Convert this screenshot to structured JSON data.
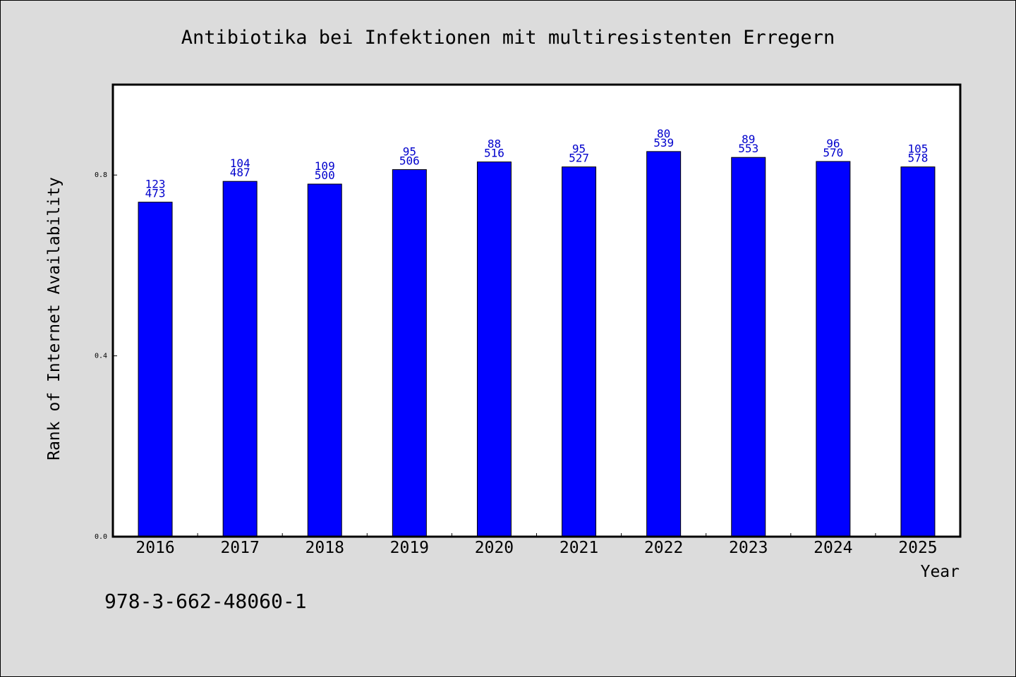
{
  "colors": {
    "bar": "#0000ff",
    "bar_outline": "#000000",
    "data_label": "#0000cc",
    "page_background": "#dcdcdc",
    "plot_background": "#ffffff"
  },
  "footer": {
    "isbn": "978-3-662-48060-1"
  },
  "chart_data": {
    "type": "bar",
    "title": "Antibiotika bei Infektionen mit multiresistenten Erregern",
    "xlabel": "Year",
    "ylabel": "Rank of Internet Availability",
    "categories": [
      "2016",
      "2017",
      "2018",
      "2019",
      "2020",
      "2021",
      "2022",
      "2023",
      "2024",
      "2025"
    ],
    "values": [
      0.74,
      0.786,
      0.78,
      0.812,
      0.829,
      0.818,
      0.852,
      0.839,
      0.83,
      0.818
    ],
    "label_top": [
      "123",
      "104",
      "109",
      "95",
      "88",
      "95",
      "80",
      "89",
      "96",
      "105"
    ],
    "label_bottom": [
      "473",
      "487",
      "500",
      "506",
      "516",
      "527",
      "539",
      "553",
      "570",
      "578"
    ],
    "yticks": [
      0.0,
      0.4,
      0.8
    ],
    "ytick_labels": [
      "0.0",
      "0.4",
      "0.8"
    ],
    "ylim": [
      0,
      1.0
    ],
    "grid": false,
    "legend": "none"
  }
}
